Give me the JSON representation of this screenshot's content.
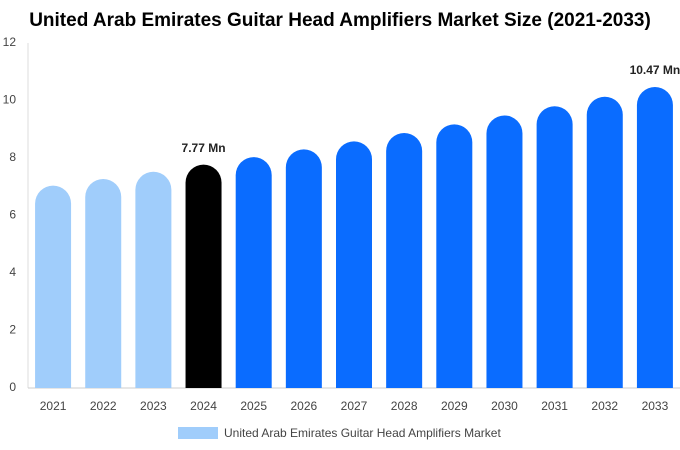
{
  "chart_data": {
    "type": "bar",
    "title": "United Arab Emirates Guitar Head Amplifiers Market Size (2021-2033)",
    "categories": [
      "2021",
      "2022",
      "2023",
      "2024",
      "2025",
      "2026",
      "2027",
      "2028",
      "2029",
      "2030",
      "2031",
      "2032",
      "2033"
    ],
    "series": [
      {
        "name": "United Arab Emirates Guitar Head Amplifiers Market",
        "color": "#a0cdfb",
        "colors": [
          "#a0cdfb",
          "#a0cdfb",
          "#a0cdfb",
          "#000000",
          "#0a6cff",
          "#0a6cff",
          "#0a6cff",
          "#0a6cff",
          "#0a6cff",
          "#0a6cff",
          "#0a6cff",
          "#0a6cff",
          "#0a6cff"
        ],
        "values": [
          7.04,
          7.27,
          7.52,
          7.77,
          8.03,
          8.3,
          8.58,
          8.87,
          9.17,
          9.48,
          9.8,
          10.13,
          10.47
        ],
        "value_labels": [
          null,
          null,
          null,
          "7.77 Mn",
          null,
          null,
          null,
          null,
          null,
          null,
          null,
          null,
          "10.47 Mn"
        ]
      }
    ],
    "ylim": [
      0,
      12
    ],
    "yticks": [
      0,
      2,
      4,
      6,
      8,
      10,
      12
    ],
    "grid": false,
    "legend": "bottom"
  }
}
